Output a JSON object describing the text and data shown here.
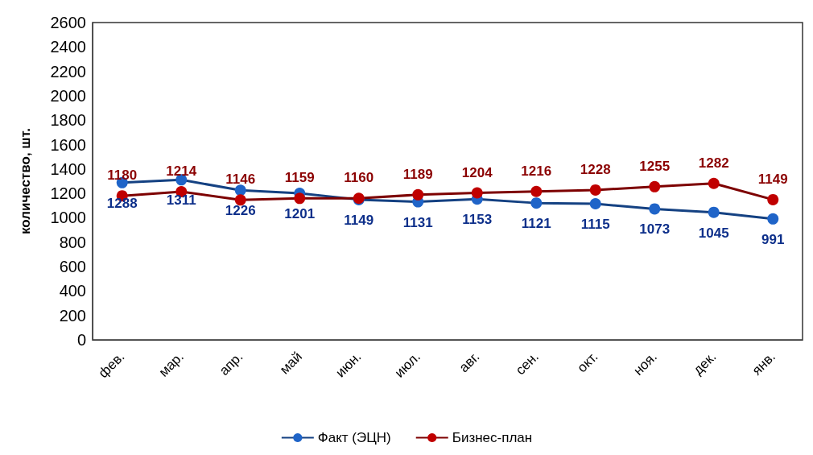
{
  "chart_data": {
    "type": "line",
    "ylabel": "количество, шт.",
    "categories": [
      "фев.",
      "мар.",
      "апр.",
      "май",
      "июн.",
      "июл.",
      "авг.",
      "сен.",
      "окт.",
      "ноя.",
      "дек.",
      "янв."
    ],
    "series": [
      {
        "name": "Факт (ЭЦН)",
        "color": "#1f64c8",
        "values": [
          1288,
          1311,
          1226,
          1201,
          1149,
          1131,
          1153,
          1121,
          1115,
          1073,
          1045,
          991
        ]
      },
      {
        "name": "Бизнес-план",
        "color": "#c00000",
        "values": [
          1180,
          1214,
          1146,
          1159,
          1160,
          1189,
          1204,
          1216,
          1228,
          1255,
          1282,
          1149
        ]
      }
    ],
    "ylim": [
      0,
      2600
    ],
    "yticks": [
      0,
      200,
      400,
      600,
      800,
      1000,
      1200,
      1400,
      1600,
      1800,
      2000,
      2200,
      2400,
      2600
    ],
    "grid": false,
    "legend": "bottom",
    "marker": "circle",
    "line_style": "solid",
    "data_labels": true
  }
}
